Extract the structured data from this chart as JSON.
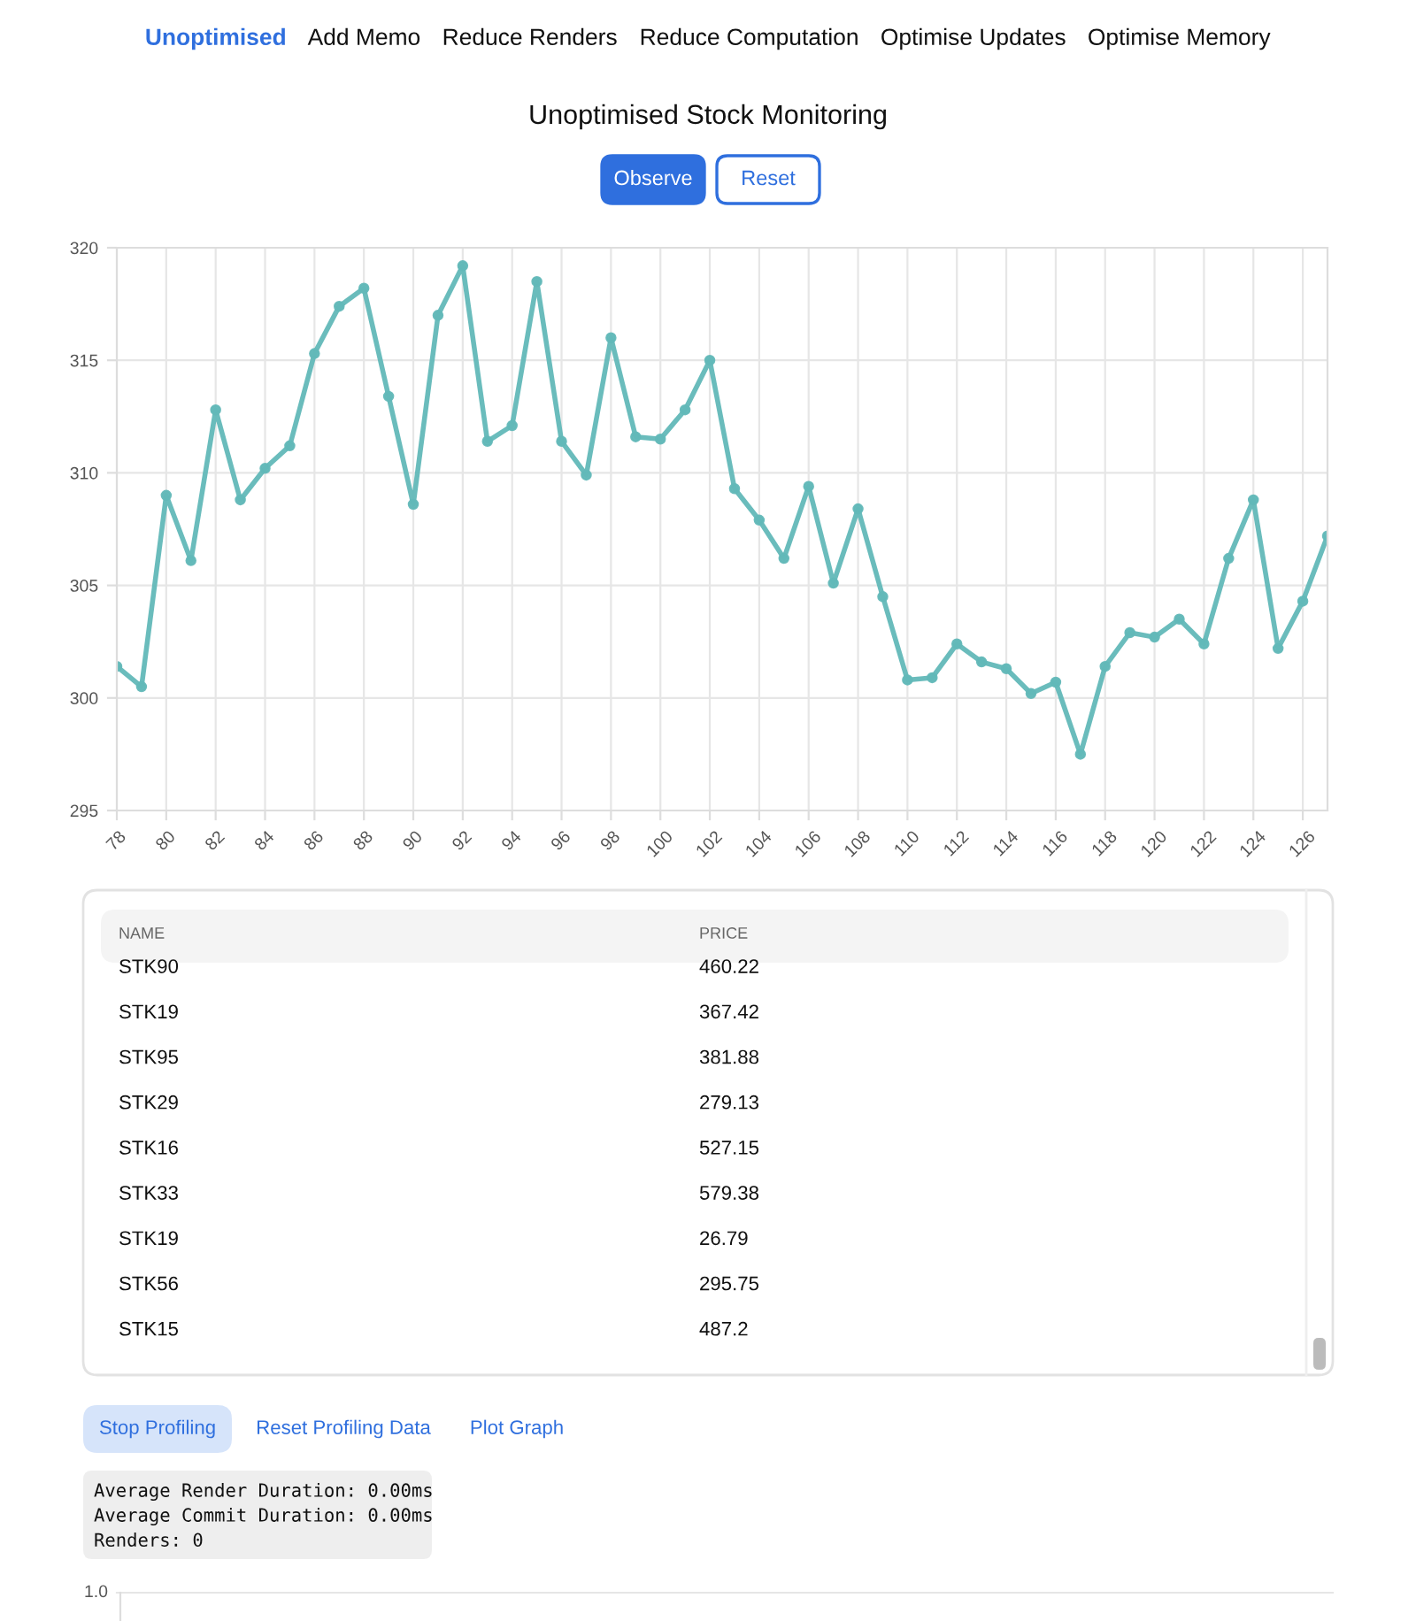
{
  "chart_data": [
    {
      "type": "other",
      "annotations": [
        "Unoptimised",
        "Add Memo",
        "Reduce Renders",
        "Reduce Computation",
        "Optimise Updates",
        "Optimise Memory",
        "Observe",
        "Reset"
      ]
    },
    {
      "type": "line",
      "title": "Unoptimised Stock Monitoring",
      "x": [
        78,
        79,
        80,
        81,
        82,
        83,
        84,
        85,
        86,
        87,
        88,
        89,
        90,
        91,
        92,
        93,
        94,
        95,
        96,
        97,
        98,
        99,
        100,
        101,
        102,
        103,
        104,
        105,
        106,
        107,
        108,
        109,
        110,
        111,
        112,
        113,
        114,
        115,
        116,
        117,
        118,
        119,
        120,
        121,
        122,
        123,
        124,
        125,
        126,
        127
      ],
      "series": [
        {
          "color": "#62b8b8",
          "values": [
            301.4,
            300.5,
            309.0,
            306.1,
            312.8,
            308.8,
            310.2,
            311.2,
            315.3,
            317.4,
            318.2,
            313.4,
            308.6,
            317.0,
            319.2,
            311.4,
            312.1,
            318.5,
            311.4,
            309.9,
            316.0,
            311.6,
            311.5,
            312.8,
            315.0,
            309.3,
            307.9,
            306.2,
            309.4,
            305.1,
            308.4,
            304.5,
            300.8,
            300.9,
            302.4,
            301.6,
            301.3,
            300.2,
            300.7,
            297.5,
            301.4,
            302.9,
            302.7,
            303.5,
            302.4,
            306.2,
            308.8,
            302.2,
            304.3,
            307.2
          ]
        }
      ],
      "xlim": [
        78,
        127
      ],
      "xticks": [
        78,
        80,
        82,
        84,
        86,
        88,
        90,
        92,
        94,
        96,
        98,
        100,
        102,
        104,
        106,
        108,
        110,
        112,
        114,
        116,
        118,
        120,
        122,
        124,
        126
      ],
      "ylim": [
        295,
        320
      ],
      "yticks": [
        295,
        300,
        305,
        310,
        315,
        320
      ],
      "grid": true,
      "marker": "circle",
      "line_style": "solid"
    },
    {
      "type": "other",
      "annotations": [
        "NAME",
        "PRICE",
        "STK90",
        "460.22",
        "STK19",
        "367.42",
        "STK95",
        "381.88",
        "STK29",
        "279.13",
        "STK16",
        "527.15",
        "STK33",
        "579.38",
        "STK19",
        "26.79",
        "STK56",
        "295.75",
        "STK15",
        "487.2"
      ]
    },
    {
      "type": "other",
      "annotations": [
        "Stop Profiling",
        "Reset Profiling Data",
        "Plot Graph",
        "Average Render Duration: 0.00ms",
        "Average Commit Duration: 0.00ms",
        "Renders: 0"
      ]
    },
    {
      "type": "other",
      "annotations": [
        "1.0"
      ]
    }
  ]
}
